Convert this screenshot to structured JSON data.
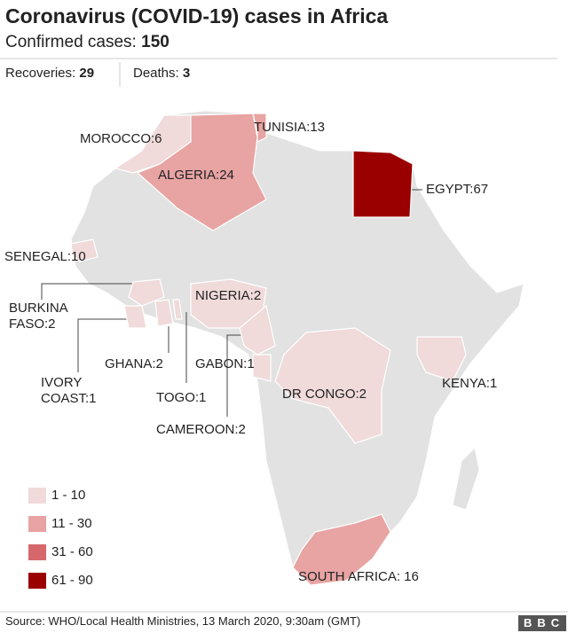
{
  "header": {
    "title": "Coronavirus (COVID-19) cases in Africa",
    "subtitle_label": "Confirmed cases:",
    "subtitle_value": "150",
    "recoveries_label": "Recoveries:",
    "recoveries_value": "29",
    "deaths_label": "Deaths:",
    "deaths_value": "3"
  },
  "legend": [
    {
      "label": "1 - 10",
      "min": 1,
      "max": 10,
      "color": "#f0dada"
    },
    {
      "label": "11 - 30",
      "min": 11,
      "max": 30,
      "color": "#e8a3a3"
    },
    {
      "label": "31 - 60",
      "min": 31,
      "max": 60,
      "color": "#d6686b"
    },
    {
      "label": "61 - 90",
      "min": 61,
      "max": 90,
      "color": "#9b0000"
    }
  ],
  "countries": [
    {
      "label": "MOROCCO:6",
      "cases": 6
    },
    {
      "label": "TUNISIA:13",
      "cases": 13
    },
    {
      "label": "ALGERIA:24",
      "cases": 24
    },
    {
      "label": "EGYPT:67",
      "cases": 67
    },
    {
      "label": "SENEGAL:10",
      "cases": 10
    },
    {
      "label": "BURKINA FASO:2",
      "cases": 2
    },
    {
      "label": "NIGERIA:2",
      "cases": 2
    },
    {
      "label": "IVORY COAST:1",
      "cases": 1
    },
    {
      "label": "GHANA:2",
      "cases": 2
    },
    {
      "label": "TOGO:1",
      "cases": 1
    },
    {
      "label": "GABON:1",
      "cases": 1
    },
    {
      "label": "CAMEROON:2",
      "cases": 2
    },
    {
      "label": "DR CONGO:2",
      "cases": 2
    },
    {
      "label": "KENYA:1",
      "cases": 1
    },
    {
      "label": "SOUTH AFRICA: 16",
      "cases": 16
    }
  ],
  "footer": {
    "source": "Source: WHO/Local Health Ministries, 13 March 2020, 9:30am (GMT)",
    "logo": "BBC"
  }
}
